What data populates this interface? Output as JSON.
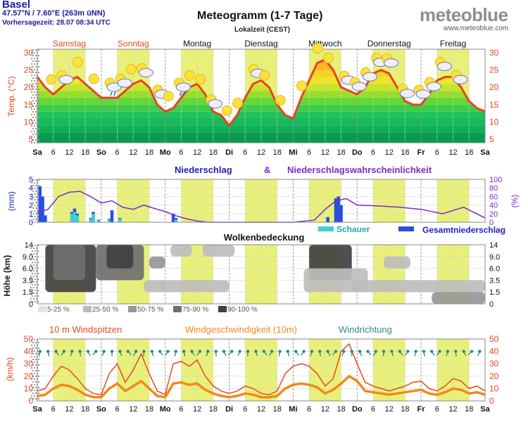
{
  "header": {
    "location": "Basel",
    "coords": "47.57°N / 7.60°E (263m üNN)",
    "forecast_time": "Vorhersagezeit: 28.07 08:34 UTC",
    "title": "Meteogramm (1-7 Tage)",
    "timezone": "Lokalzeit (CEST)",
    "logo": "meteoblue",
    "logo_url": "www.meteoblue.com"
  },
  "colors": {
    "temp_line": "#e8441b",
    "precip_blue": "#2a4ee0",
    "shower_cyan": "#3fd0d0",
    "prob_purple": "#7a2cc8",
    "day_band": "#e8f07a",
    "wind_gust": "#e84a1b",
    "wind_speed": "#f08a1a",
    "wind_dir": "#2a8c88",
    "precip_title": "#2020c0",
    "cloud_dark": "#4a4a4a"
  },
  "days": [
    "Samstag",
    "Sonntag",
    "Montag",
    "Dienstag",
    "Mittwoch",
    "Donnerstag",
    "Freitag"
  ],
  "day_colors": [
    "#e8441b",
    "#e8441b",
    "#111111",
    "#111111",
    "#111111",
    "#111111",
    "#111111"
  ],
  "time_ticks": [
    "Sa",
    "6",
    "12",
    "18",
    "So",
    "6",
    "12",
    "18",
    "Mo",
    "6",
    "12",
    "18",
    "Di",
    "6",
    "12",
    "18",
    "Mi",
    "6",
    "12",
    "18",
    "Do",
    "6",
    "12",
    "18",
    "Fr",
    "6",
    "12",
    "18",
    "Sa"
  ],
  "chart_data": [
    {
      "type": "line",
      "title": "",
      "ylabel": "Temp. (°C)",
      "ylim": [
        4,
        31
      ],
      "y_ticks": [
        "30",
        "25",
        "20",
        "15",
        "10",
        "5"
      ],
      "x_hours": [
        0,
        3,
        6,
        9,
        12,
        15,
        18,
        21,
        24,
        27,
        30,
        33,
        36,
        39,
        42,
        45,
        48,
        51,
        54,
        57,
        60,
        63,
        66,
        69,
        72,
        75,
        78,
        81,
        84,
        87,
        90,
        93,
        96,
        99,
        102,
        105,
        108,
        111,
        114,
        117,
        120,
        123,
        126,
        129,
        132,
        135,
        138,
        141,
        144,
        147,
        150,
        153,
        156,
        159,
        162,
        165,
        168
      ],
      "series": [
        {
          "name": "",
          "values": [
            23,
            20,
            18,
            20,
            22,
            23,
            21,
            19,
            17,
            17,
            17,
            19,
            21,
            22,
            20,
            15,
            13,
            14,
            17,
            20,
            21,
            18,
            13,
            12,
            9,
            12,
            17,
            21,
            22,
            20,
            15,
            12,
            11,
            17,
            22,
            27,
            28,
            25,
            20,
            19,
            18,
            20,
            24,
            25,
            24,
            20,
            16,
            15,
            15,
            18,
            22,
            23,
            23,
            20,
            16,
            14,
            13
          ]
        }
      ]
    },
    {
      "type": "bar",
      "title": "Niederschlag",
      "title2": "&",
      "title3": "Niederschlagswahrscheinlichkeit",
      "ylabel": "(mm)",
      "ylabel_right": "(%)",
      "ylim": [
        0,
        5
      ],
      "ylim_right": [
        0,
        100
      ],
      "y_ticks": [
        "5",
        "4",
        "3",
        "2",
        "1",
        "0"
      ],
      "y_ticks_right": [
        "100",
        "80",
        "60",
        "40",
        "20",
        "0"
      ],
      "legend": [
        "Schauer",
        "Gesamtniederschlag"
      ],
      "precip": [
        {
          "h": 1,
          "total": 4.2,
          "shower": 0
        },
        {
          "h": 2,
          "total": 3.0,
          "shower": 0
        },
        {
          "h": 3,
          "total": 0.8,
          "shower": 0
        },
        {
          "h": 13,
          "total": 1.2,
          "shower": 1.0
        },
        {
          "h": 14,
          "total": 1.6,
          "shower": 1.2
        },
        {
          "h": 15,
          "total": 1.0,
          "shower": 0.8
        },
        {
          "h": 20,
          "total": 0.5,
          "shower": 0.4
        },
        {
          "h": 21,
          "total": 1.2,
          "shower": 1.0
        },
        {
          "h": 23,
          "total": 0.3,
          "shower": 0.2
        },
        {
          "h": 27,
          "total": 0.4,
          "shower": 0.3
        },
        {
          "h": 28,
          "total": 1.4,
          "shower": 0
        },
        {
          "h": 31,
          "total": 0.5,
          "shower": 0.4
        },
        {
          "h": 51,
          "total": 1.0,
          "shower": 0
        },
        {
          "h": 52,
          "total": 0.5,
          "shower": 0.3
        },
        {
          "h": 109,
          "total": 0.6,
          "shower": 0
        },
        {
          "h": 112,
          "total": 2.8,
          "shower": 0
        },
        {
          "h": 113,
          "total": 3.0,
          "shower": 0
        },
        {
          "h": 114,
          "total": 2.0,
          "shower": 0
        }
      ],
      "probability": {
        "x_hours": [
          0,
          4,
          8,
          12,
          16,
          20,
          24,
          28,
          32,
          36,
          40,
          44,
          48,
          52,
          56,
          60,
          64,
          68,
          72,
          84,
          96,
          104,
          108,
          112,
          116,
          120,
          128,
          136,
          144,
          152,
          160,
          168
        ],
        "values": [
          22,
          30,
          60,
          70,
          72,
          60,
          45,
          50,
          35,
          30,
          40,
          32,
          25,
          15,
          8,
          3,
          0,
          0,
          0,
          0,
          0,
          5,
          30,
          50,
          55,
          40,
          38,
          35,
          30,
          20,
          35,
          10
        ]
      }
    },
    {
      "type": "heatmap",
      "title": "Wolkenbedeckung",
      "ylabel": "Höhe (km)",
      "y_ticks": [
        "14",
        "9.0",
        "6.0",
        "3.5",
        "1.5",
        "0"
      ],
      "legend": [
        "5-25 %",
        "25-50 %",
        "50-75 %",
        "75-90 %",
        "90-100 %"
      ],
      "legend_colors": [
        "#e2e2e2",
        "#bdbdbd",
        "#979797",
        "#6f6f6f",
        "#404040"
      ],
      "blobs": [
        {
          "h0": 3,
          "h1": 22,
          "lvl0": 1,
          "lvl1": 5,
          "cover": 5
        },
        {
          "h0": 6,
          "h1": 18,
          "lvl0": 2,
          "lvl1": 5,
          "cover": 4
        },
        {
          "h0": 22,
          "h1": 40,
          "lvl0": 2,
          "lvl1": 5,
          "cover": 4
        },
        {
          "h0": 26,
          "h1": 36,
          "lvl0": 3,
          "lvl1": 5,
          "cover": 5
        },
        {
          "h0": 40,
          "h1": 48,
          "lvl0": 1,
          "lvl1": 2,
          "cover": 2
        },
        {
          "h0": 42,
          "h1": 48,
          "lvl0": 3,
          "lvl1": 4,
          "cover": 3
        },
        {
          "h0": 46,
          "h1": 72,
          "lvl0": 1,
          "lvl1": 2,
          "cover": 2
        },
        {
          "h0": 50,
          "h1": 58,
          "lvl0": 4,
          "lvl1": 5,
          "cover": 2
        },
        {
          "h0": 62,
          "h1": 74,
          "lvl0": 4,
          "lvl1": 5,
          "cover": 2
        },
        {
          "h0": 102,
          "h1": 118,
          "lvl0": 2,
          "lvl1": 5,
          "cover": 5
        },
        {
          "h0": 100,
          "h1": 124,
          "lvl0": 1,
          "lvl1": 3,
          "cover": 2
        },
        {
          "h0": 118,
          "h1": 168,
          "lvl0": 1,
          "lvl1": 2,
          "cover": 2
        },
        {
          "h0": 130,
          "h1": 140,
          "lvl0": 3,
          "lvl1": 4,
          "cover": 2
        },
        {
          "h0": 148,
          "h1": 168,
          "lvl0": 0,
          "lvl1": 1,
          "cover": 3
        }
      ]
    },
    {
      "type": "line",
      "title": "10 m Windspitzen",
      "title2": "Windgeschwindigkeit (10m)",
      "title3": "Windrichtung",
      "ylabel": "(km/h)",
      "ylim": [
        0,
        50
      ],
      "y_ticks": [
        "50",
        "40",
        "30",
        "20",
        "10",
        "0"
      ],
      "x_hours": [
        0,
        3,
        6,
        9,
        12,
        15,
        18,
        21,
        24,
        27,
        30,
        33,
        36,
        39,
        42,
        45,
        48,
        51,
        54,
        57,
        60,
        63,
        66,
        69,
        72,
        75,
        78,
        81,
        84,
        87,
        90,
        93,
        96,
        99,
        102,
        105,
        108,
        111,
        114,
        117,
        120,
        123,
        126,
        129,
        132,
        135,
        138,
        141,
        144,
        147,
        150,
        153,
        156,
        159,
        162,
        165,
        168
      ],
      "series": [
        {
          "name": "10 m Windspitzen",
          "values": [
            8,
            10,
            20,
            28,
            25,
            18,
            10,
            6,
            5,
            22,
            30,
            15,
            25,
            38,
            22,
            8,
            5,
            30,
            32,
            28,
            33,
            20,
            12,
            8,
            6,
            8,
            12,
            10,
            6,
            5,
            8,
            22,
            28,
            30,
            28,
            22,
            12,
            18,
            40,
            46,
            30,
            15,
            12,
            10,
            8,
            10,
            12,
            15,
            16,
            10,
            8,
            12,
            18,
            16,
            10,
            12,
            8
          ]
        },
        {
          "name": "Windgeschwindigkeit (10m)",
          "values": [
            4,
            5,
            10,
            13,
            12,
            9,
            5,
            3,
            3,
            10,
            14,
            8,
            12,
            16,
            10,
            4,
            3,
            14,
            15,
            13,
            14,
            9,
            6,
            4,
            3,
            4,
            6,
            5,
            3,
            3,
            4,
            10,
            13,
            14,
            13,
            11,
            6,
            9,
            14,
            20,
            16,
            8,
            7,
            6,
            5,
            6,
            7,
            8,
            9,
            6,
            5,
            7,
            10,
            9,
            6,
            7,
            5
          ]
        }
      ],
      "wind_dir_level": 40
    }
  ]
}
